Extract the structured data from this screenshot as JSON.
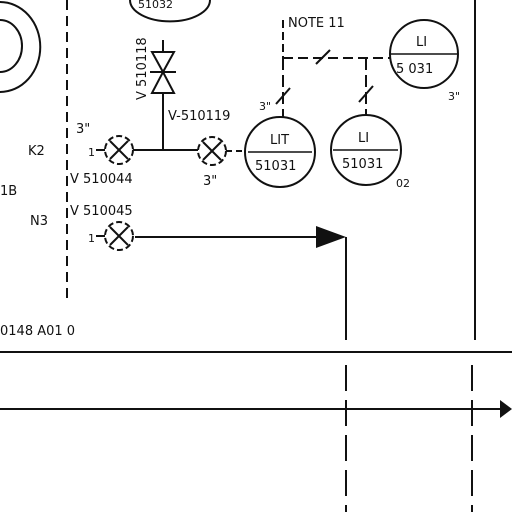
{
  "labels": {
    "note": "NOTE  11",
    "tag_top": "51032",
    "valve_v510118": "V 510118",
    "valve_v510119": "V-510119",
    "valve_v510044": "V 510044",
    "valve_v510045": "V 510045",
    "size_3in_a": "3\"",
    "size_3in_b": "3\"",
    "size_3in_c": "3\"",
    "size_3in_d": "3\"",
    "line_k2": "K2",
    "line_n3": "N3",
    "line_1b": "1B",
    "line_num_a": "1",
    "line_num_b": "1",
    "ref_bottom": "0148  A01  0",
    "suffix_02": "02"
  },
  "instruments": {
    "lit": {
      "top": "LIT",
      "bottom": "51031"
    },
    "li_a": {
      "top": "LI",
      "bottom": "51031"
    },
    "li_b": {
      "top": "LI",
      "bottom": "5 031"
    }
  }
}
